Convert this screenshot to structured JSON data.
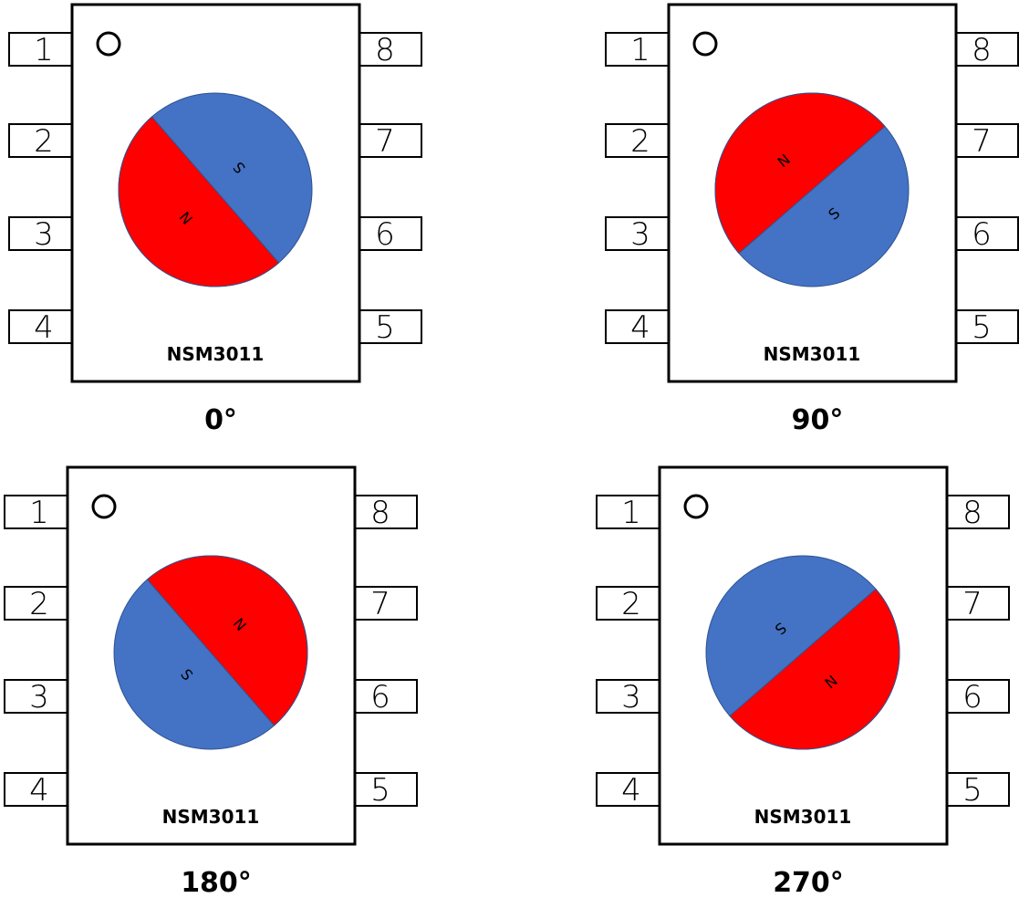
{
  "panels": [
    {
      "caption": "0°",
      "chip": "NSM3011",
      "pins_left": [
        "1",
        "2",
        "3",
        "4"
      ],
      "pins_right": [
        "8",
        "7",
        "6",
        "5"
      ],
      "north": "N",
      "south": "S"
    },
    {
      "caption": "90°",
      "chip": "NSM3011",
      "pins_left": [
        "1",
        "2",
        "3",
        "4"
      ],
      "pins_right": [
        "8",
        "7",
        "6",
        "5"
      ],
      "north": "N",
      "south": "S"
    },
    {
      "caption": "180°",
      "chip": "NSM3011",
      "pins_left": [
        "1",
        "2",
        "3",
        "4"
      ],
      "pins_right": [
        "8",
        "7",
        "6",
        "5"
      ],
      "north": "N",
      "south": "S"
    },
    {
      "caption": "270°",
      "chip": "NSM3011",
      "pins_left": [
        "1",
        "2",
        "3",
        "4"
      ],
      "pins_right": [
        "8",
        "7",
        "6",
        "5"
      ],
      "north": "N",
      "south": "S"
    }
  ]
}
